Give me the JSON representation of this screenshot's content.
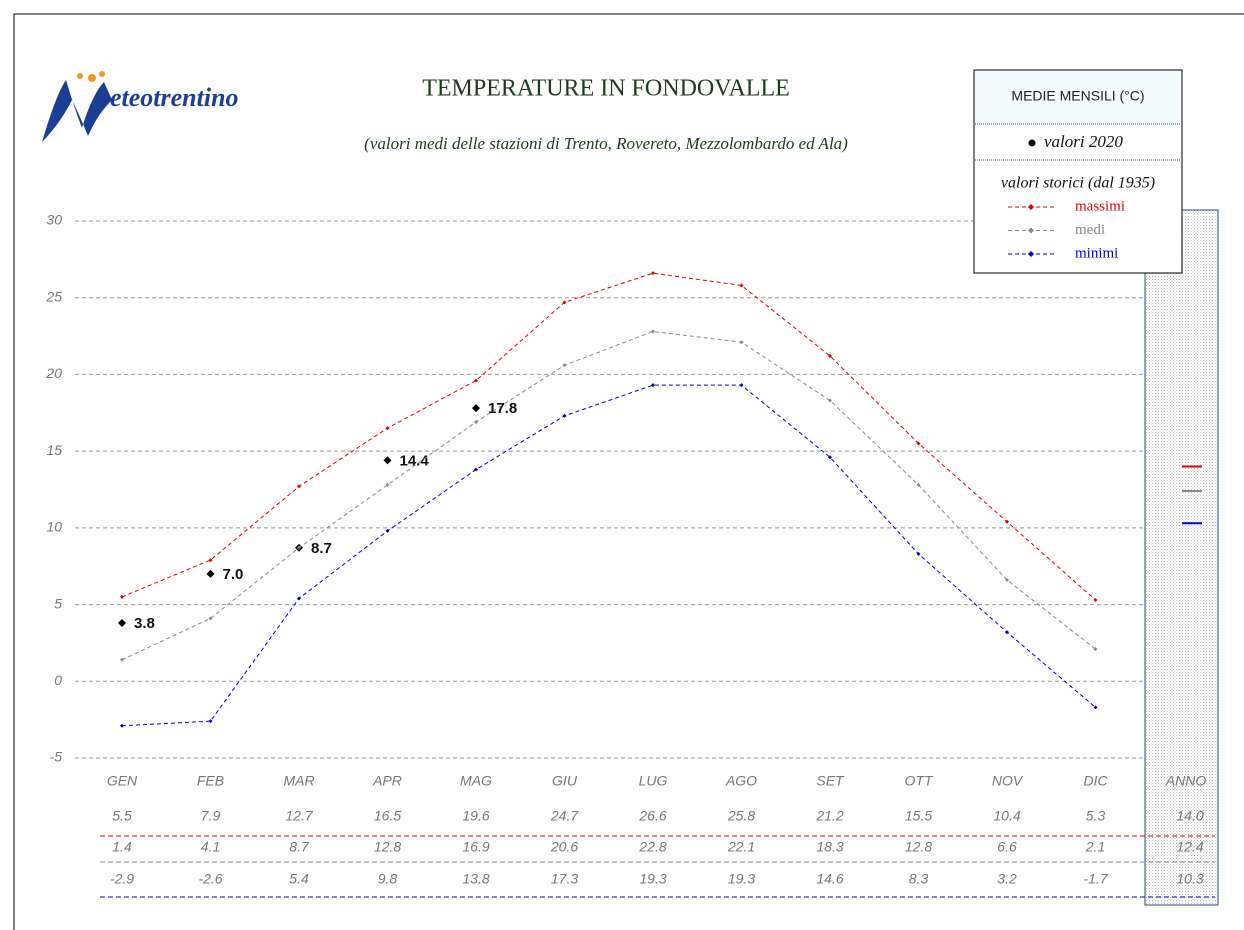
{
  "chart_data": {
    "type": "line",
    "logo": "eteotrentino",
    "title": "TEMPERATURE IN FONDOVALLE",
    "subtitle": "(valori medi delle stazioni di Trento, Rovereto, Mezzolombardo ed Ala)",
    "legend_title": "MEDIE MENSILI (°C)",
    "legend_subtitle": "valori storici (dal 1935)",
    "categories": [
      "GEN",
      "FEB",
      "MAR",
      "APR",
      "MAG",
      "GIU",
      "LUG",
      "AGO",
      "SET",
      "OTT",
      "NOV",
      "DIC"
    ],
    "annual_category": "ANNO",
    "ylim": [
      -5,
      30
    ],
    "yticks": [
      -5,
      0,
      5,
      10,
      15,
      20,
      25,
      30
    ],
    "grid": true,
    "series": [
      {
        "name": "valori 2020",
        "mode": "markers",
        "color": "#000000",
        "values": [
          3.8,
          7,
          8.7,
          14.4,
          17.8,
          null,
          null,
          null,
          null,
          null,
          null,
          null
        ],
        "value_labels": [
          "3.8",
          "7.0",
          "8.7",
          "14.4",
          "17.8",
          null,
          null,
          null,
          null,
          null,
          null,
          null
        ]
      },
      {
        "name": "massimi",
        "mode": "lines",
        "color": "#e00000",
        "values": [
          5.5,
          7.9,
          12.7,
          16.5,
          19.6,
          24.7,
          26.6,
          25.8,
          21.2,
          15.5,
          10.4,
          5.3
        ],
        "value_labels": [
          "5.5",
          "7.9",
          "12.7",
          "16.5",
          "19.6",
          "24.7",
          "26.6",
          "25.8",
          "21.2",
          "15.5",
          "10.4",
          "5.3"
        ],
        "annual": 14,
        "annual_label": "14.0"
      },
      {
        "name": "medi",
        "mode": "lines",
        "color": "#888888",
        "values": [
          1.4,
          4.1,
          8.7,
          12.8,
          16.9,
          20.6,
          22.8,
          22.1,
          18.3,
          12.8,
          6.6,
          2.1
        ],
        "value_labels": [
          "1.4",
          "4.1",
          "8.7",
          "12.8",
          "16.9",
          "20.6",
          "22.8",
          "22.1",
          "18.3",
          "12.8",
          "6.6",
          "2.1"
        ],
        "annual": 12.4,
        "annual_label": "12.4"
      },
      {
        "name": "minimi",
        "mode": "lines",
        "color": "#0000cc",
        "values": [
          -2.9,
          -2.6,
          5.4,
          9.8,
          13.8,
          17.3,
          19.3,
          19.3,
          14.6,
          8.3,
          3.2,
          -1.7
        ],
        "value_labels": [
          "-2.9",
          "-2.6",
          "5.4",
          "9.8",
          "13.8",
          "17.3",
          "19.3",
          "19.3",
          "14.6",
          "8.3",
          "3.2",
          "-1.7"
        ],
        "annual": 10.3,
        "annual_label": "10.3"
      }
    ]
  }
}
